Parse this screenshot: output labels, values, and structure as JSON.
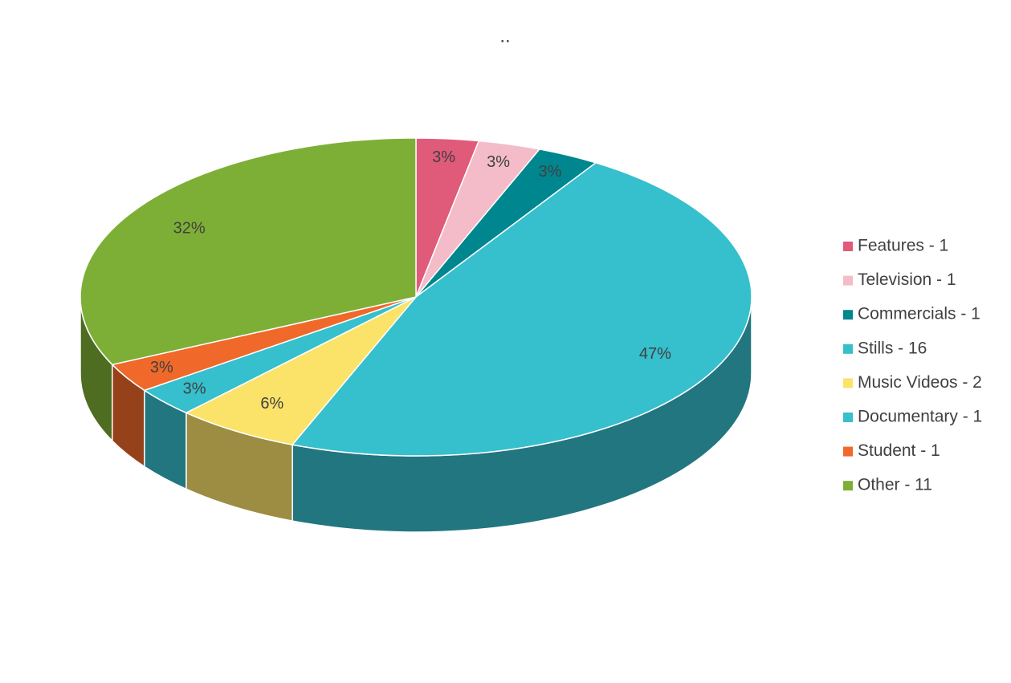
{
  "chart_data": {
    "type": "pie",
    "title": "..",
    "categories": [
      "Features - 1",
      "Television - 1",
      "Commercials - 1",
      "Stills - 16",
      "Music Videos - 2",
      "Documentary - 1",
      "Student - 1",
      "Other - 11"
    ],
    "values": [
      3,
      3,
      3,
      47,
      6,
      3,
      3,
      32
    ],
    "value_labels": [
      "3%",
      "3%",
      "3%",
      "47%",
      "6%",
      "3%",
      "3%",
      "32%"
    ],
    "colors": [
      "#e05a7a",
      "#f4bcc8",
      "#00868f",
      "#36bfcd",
      "#fbe36a",
      "#36bfcd",
      "#f0692a",
      "#7daf36"
    ],
    "legend": "right"
  }
}
